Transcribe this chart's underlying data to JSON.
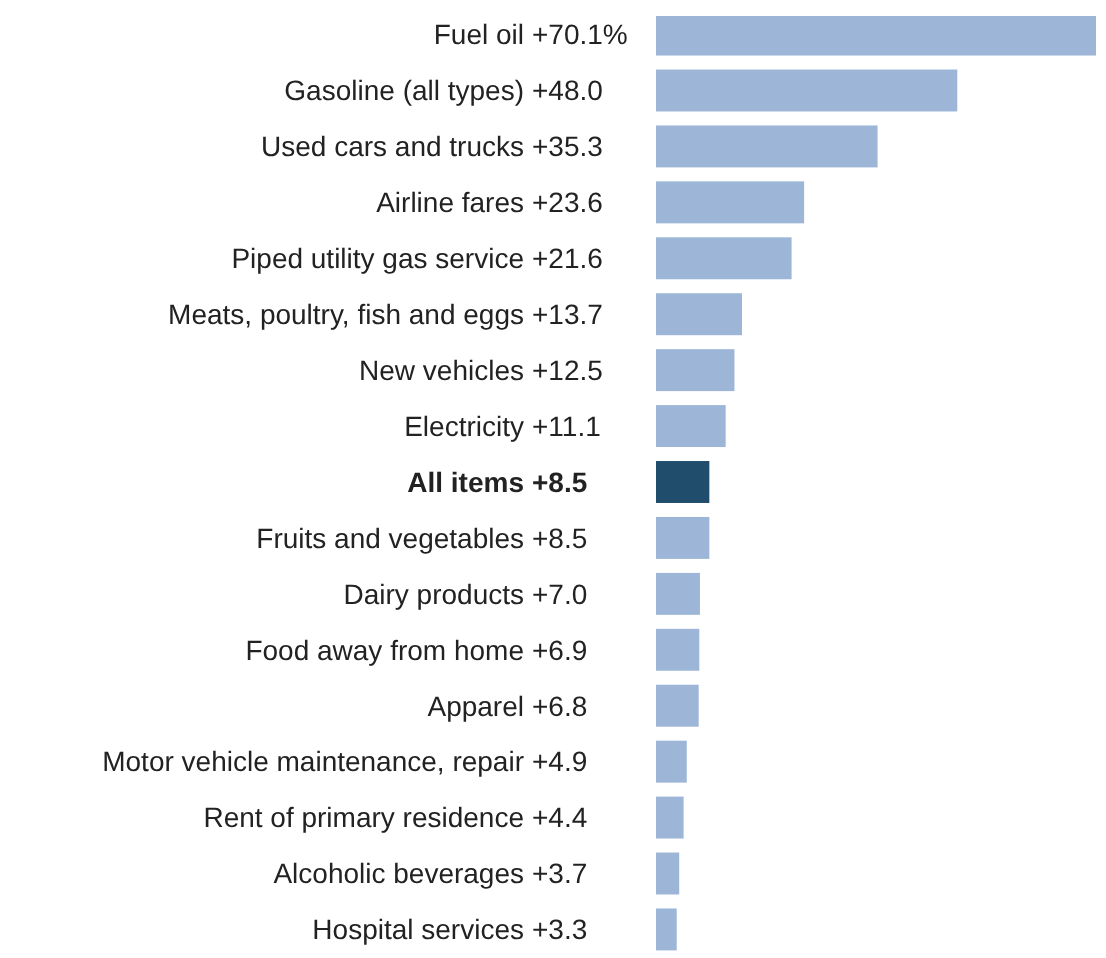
{
  "chart_data": {
    "type": "bar",
    "orientation": "horizontal",
    "categories": [
      "Fuel oil",
      "Gasoline (all types)",
      "Used cars and trucks",
      "Airline fares",
      "Piped utility gas service",
      "Meats, poultry, fish and eggs",
      "New vehicles",
      "Electricity",
      "All items",
      "Fruits and vegetables",
      "Dairy products",
      "Food away from home",
      "Apparel",
      "Motor vehicle maintenance, repair",
      "Rent of primary residence",
      "Alcoholic beverages",
      "Hospital services"
    ],
    "values": [
      70.1,
      48.0,
      35.3,
      23.6,
      21.6,
      13.7,
      12.5,
      11.1,
      8.5,
      8.5,
      7.0,
      6.9,
      6.8,
      4.9,
      4.4,
      3.7,
      3.3
    ],
    "value_labels": [
      "+70.1%",
      "+48.0",
      "+35.3",
      "+23.6",
      "+21.6",
      "+13.7",
      "+12.5",
      "+11.1",
      "+8.5",
      "+8.5",
      "+7.0",
      "+6.9",
      "+6.8",
      "+4.9",
      "+4.4",
      "+3.7",
      "+3.3"
    ],
    "colors": [
      "#9db6d8",
      "#9db6d8",
      "#9db6d8",
      "#9db6d8",
      "#9db6d8",
      "#9db6d8",
      "#9db6d8",
      "#9db6d8",
      "#1f4d6b",
      "#9db6d8",
      "#9db6d8",
      "#9db6d8",
      "#9db6d8",
      "#9db6d8",
      "#9db6d8",
      "#9db6d8",
      "#9db6d8"
    ]
  }
}
